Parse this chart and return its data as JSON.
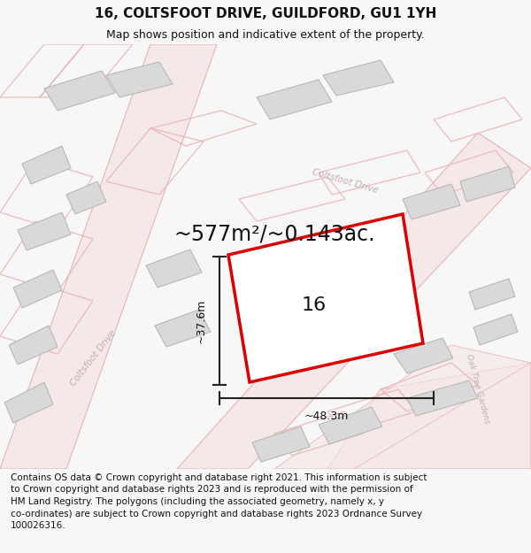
{
  "title": "16, COLTSFOOT DRIVE, GUILDFORD, GU1 1YH",
  "subtitle": "Map shows position and indicative extent of the property.",
  "area_text": "~577m²/~0.143ac.",
  "dim_width": "~48.3m",
  "dim_height": "~37.6m",
  "number_label": "16",
  "footer_lines": "Contains OS data © Crown copyright and database right 2021. This information is subject\nto Crown copyright and database rights 2023 and is reproduced with the permission of\nHM Land Registry. The polygons (including the associated geometry, namely x, y\nco-ordinates) are subject to Crown copyright and database rights 2023 Ordnance Survey\n100026316.",
  "bg_color": "#f7f7f7",
  "map_bg": "#ffffff",
  "road_fill": "#f5e8e8",
  "road_edge": "#e8b4b4",
  "plot_edge": "#e8b4b4",
  "building_fill": "#d9d9d9",
  "building_edge": "#b8b8b8",
  "highlight_color": "#dd0000",
  "dim_line_color": "#222222",
  "text_color": "#111111",
  "road_label_color": "#c0b0b0",
  "title_fontsize": 11,
  "subtitle_fontsize": 9,
  "area_fontsize": 17,
  "label_fontsize": 16,
  "dim_fontsize": 9,
  "footer_fontsize": 7.5,
  "road_label_fontsize": 7.5
}
